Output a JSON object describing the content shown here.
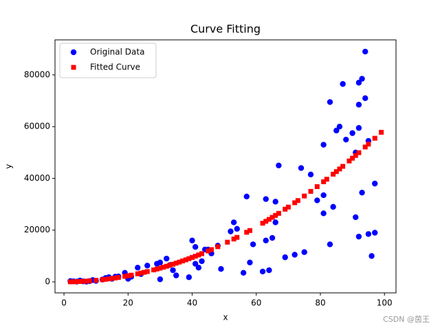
{
  "chart_data": {
    "type": "scatter",
    "title": "Curve Fitting",
    "x_label": "x",
    "y_label": "y",
    "xlim": [
      -2.8,
      103.6
    ],
    "ylim": [
      -4250,
      93540
    ],
    "xticks": [
      0,
      20,
      40,
      60,
      80,
      100
    ],
    "yticks": [
      0,
      20000,
      40000,
      60000,
      80000
    ],
    "legend": "upper left",
    "watermark": "CSDN @茵王",
    "series": [
      {
        "name": "Original Data",
        "color": "#0000ff",
        "marker": "circle",
        "x": [
          2,
          3,
          4,
          5,
          6,
          7,
          8,
          9,
          10,
          12,
          13,
          14,
          15,
          16,
          17,
          19,
          20,
          21,
          23,
          24,
          26,
          29,
          30,
          30,
          32,
          33,
          34,
          35,
          39,
          40,
          41,
          41,
          42,
          43,
          44,
          45,
          46,
          48,
          49,
          52,
          53,
          54,
          56,
          57,
          58,
          59,
          62,
          63,
          63,
          64,
          65,
          66,
          66,
          67,
          69,
          72,
          74,
          75,
          77,
          79,
          81,
          81,
          81,
          83,
          83,
          84,
          85,
          86,
          87,
          88,
          90,
          91,
          91,
          92,
          92,
          92,
          92,
          93,
          93,
          94,
          94,
          95,
          95,
          96,
          97,
          97
        ],
        "values": [
          300,
          200,
          100,
          500,
          200,
          100,
          300,
          700,
          400,
          900,
          1500,
          1800,
          1200,
          2000,
          2100,
          3500,
          1200,
          2000,
          5500,
          3000,
          6300,
          7000,
          1000,
          7500,
          9000,
          6500,
          4500,
          2500,
          1800,
          16000,
          13500,
          7000,
          5500,
          8000,
          12500,
          12500,
          11000,
          14000,
          5000,
          19500,
          23000,
          20500,
          3500,
          33000,
          7500,
          14500,
          4000,
          32000,
          16000,
          4500,
          17000,
          31000,
          23000,
          45000,
          9500,
          10500,
          44000,
          11500,
          41500,
          31500,
          53000,
          26500,
          33500,
          69500,
          14500,
          29000,
          58500,
          60000,
          76500,
          55000,
          57500,
          50000,
          25000,
          77000,
          68500,
          59500,
          17500,
          78500,
          34500,
          89000,
          71000,
          54500,
          18500,
          10000,
          38000,
          19000
        ]
      },
      {
        "name": "Fitted Curve",
        "color": "#ff0000",
        "marker": "square",
        "x": [
          2,
          3,
          4,
          5,
          6,
          7,
          8,
          10,
          12,
          13,
          14,
          15,
          16,
          17,
          19,
          20,
          21,
          23,
          24,
          25,
          26,
          28,
          29,
          30,
          31,
          32,
          33,
          34,
          35,
          36,
          37,
          38,
          39,
          40,
          41,
          42,
          43,
          45,
          46,
          48,
          51,
          53,
          54,
          57,
          58,
          62,
          63,
          64,
          65,
          66,
          67,
          69,
          70,
          72,
          73,
          75,
          77,
          79,
          81,
          82,
          84,
          85,
          86,
          87,
          89,
          90,
          91,
          92,
          94,
          95,
          97,
          99
        ],
        "values": [
          24,
          53,
          94,
          148,
          212,
          289,
          378,
          590,
          850,
          997,
          1156,
          1328,
          1510,
          1705,
          2130,
          2360,
          2602,
          3121,
          3398,
          3688,
          3988,
          4626,
          4962,
          5310,
          5670,
          6042,
          6425,
          6820,
          7228,
          7646,
          8077,
          8520,
          8974,
          9440,
          9918,
          10408,
          10909,
          11948,
          12484,
          13594,
          15346,
          16573,
          17204,
          19169,
          19848,
          22680,
          23417,
          24166,
          24928,
          25700,
          26485,
          28090,
          28910,
          30586,
          31441,
          33188,
          34981,
          36822,
          38710,
          39672,
          41630,
          42628,
          43636,
          44657,
          46734,
          47790,
          48858,
          49938,
          52132,
          53248,
          55513,
          57826
        ]
      }
    ]
  }
}
